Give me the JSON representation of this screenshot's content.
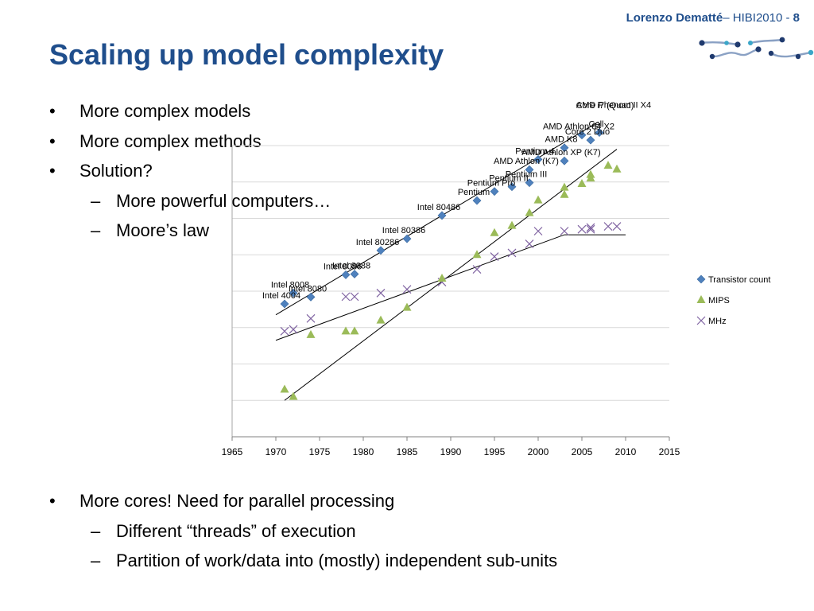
{
  "header": {
    "author": "Lorenzo Dematté",
    "event": "– HIBI2010 - ",
    "page": "8"
  },
  "title": "Scaling up model complexity",
  "bullets_top": [
    {
      "level": 1,
      "text": "More complex models"
    },
    {
      "level": 1,
      "text": "More complex methods"
    },
    {
      "level": 1,
      "text": "Solution?"
    },
    {
      "level": 2,
      "text": "More powerful computers…"
    },
    {
      "level": 2,
      "text": "Moore’s law"
    }
  ],
  "bullets_bottom": [
    {
      "level": 1,
      "text": "More cores! Need for parallel processing"
    },
    {
      "level": 2,
      "text": "Different “threads” of execution"
    },
    {
      "level": 2,
      "text": "Partition of work/data into (mostly) independent sub-units"
    }
  ],
  "chart_data": {
    "type": "scatter",
    "title": "",
    "xlabel": "",
    "ylabel": "",
    "xlim": [
      1965,
      2015
    ],
    "x_ticks": [
      1965,
      1970,
      1975,
      1980,
      1985,
      1990,
      1995,
      2000,
      2005,
      2010,
      2015
    ],
    "y_scale": "log",
    "ylim": [
      0,
      8
    ],
    "grid": true,
    "legend_position": "right",
    "colors": {
      "transistors": "#4f81bd",
      "mips": "#9bbb59",
      "mhz": "#8064a2",
      "trend": "#000000"
    },
    "series": [
      {
        "name": "Transistor count",
        "marker": "diamond",
        "points": [
          {
            "x": 1971,
            "y": 3.65,
            "label": "Intel 4004"
          },
          {
            "x": 1972,
            "y": 3.95,
            "label": "Intel 8008"
          },
          {
            "x": 1974,
            "y": 3.84,
            "label": "Intel 8080"
          },
          {
            "x": 1978,
            "y": 4.45,
            "label": "Intel 8086"
          },
          {
            "x": 1979,
            "y": 4.47,
            "label": "Intel 8088"
          },
          {
            "x": 1982,
            "y": 5.12,
            "label": "Intel 80286"
          },
          {
            "x": 1985,
            "y": 5.44,
            "label": "Intel 80386"
          },
          {
            "x": 1989,
            "y": 6.08,
            "label": "Intel 80486"
          },
          {
            "x": 1993,
            "y": 6.49,
            "label": "Pentium"
          },
          {
            "x": 1995,
            "y": 6.74,
            "label": "Pentium Pro"
          },
          {
            "x": 1997,
            "y": 6.87,
            "label": "Pentium II"
          },
          {
            "x": 1999,
            "y": 6.98,
            "label": "Pentium III"
          },
          {
            "x": 1999,
            "y": 7.34,
            "label": "AMD Athlon (K7)"
          },
          {
            "x": 2000,
            "y": 7.62,
            "label": "Pentium 4"
          },
          {
            "x": 2003,
            "y": 7.58,
            "label": "AMD Athlon XP (K7)"
          },
          {
            "x": 2003,
            "y": 7.94,
            "label": "AMD K8"
          },
          {
            "x": 2005,
            "y": 8.29,
            "label": "AMD Athlon 64 X2"
          },
          {
            "x": 2006,
            "y": 8.15,
            "label": "Core 2 Duo"
          },
          {
            "x": 2007,
            "y": 8.36,
            "label": "Cell"
          },
          {
            "x": 2008,
            "y": 8.87,
            "label": "Core i7 (Quad)"
          },
          {
            "x": 2009,
            "y": 8.88,
            "label": "AMD Phenom II X4"
          }
        ]
      },
      {
        "name": "MIPS",
        "marker": "triangle",
        "points": [
          {
            "x": 1971,
            "y": 1.3
          },
          {
            "x": 1972,
            "y": 1.1
          },
          {
            "x": 1974,
            "y": 2.8
          },
          {
            "x": 1978,
            "y": 2.9
          },
          {
            "x": 1979,
            "y": 2.9
          },
          {
            "x": 1982,
            "y": 3.2
          },
          {
            "x": 1985,
            "y": 3.55
          },
          {
            "x": 1989,
            "y": 4.35
          },
          {
            "x": 1993,
            "y": 5.0
          },
          {
            "x": 1995,
            "y": 5.6
          },
          {
            "x": 1997,
            "y": 5.8
          },
          {
            "x": 1999,
            "y": 6.15
          },
          {
            "x": 2000,
            "y": 6.5
          },
          {
            "x": 2003,
            "y": 6.85
          },
          {
            "x": 2003,
            "y": 6.65
          },
          {
            "x": 2005,
            "y": 6.95
          },
          {
            "x": 2006,
            "y": 7.2
          },
          {
            "x": 2006,
            "y": 7.1
          },
          {
            "x": 2008,
            "y": 7.45
          },
          {
            "x": 2009,
            "y": 7.35
          }
        ]
      },
      {
        "name": "MHz",
        "marker": "x",
        "points": [
          {
            "x": 1971,
            "y": 2.9
          },
          {
            "x": 1972,
            "y": 2.95
          },
          {
            "x": 1974,
            "y": 3.25
          },
          {
            "x": 1978,
            "y": 3.85
          },
          {
            "x": 1979,
            "y": 3.85
          },
          {
            "x": 1982,
            "y": 3.95
          },
          {
            "x": 1985,
            "y": 4.05
          },
          {
            "x": 1989,
            "y": 4.25
          },
          {
            "x": 1993,
            "y": 4.6
          },
          {
            "x": 1995,
            "y": 4.95
          },
          {
            "x": 1997,
            "y": 5.05
          },
          {
            "x": 1999,
            "y": 5.3
          },
          {
            "x": 2000,
            "y": 5.65
          },
          {
            "x": 2003,
            "y": 5.65
          },
          {
            "x": 2005,
            "y": 5.7
          },
          {
            "x": 2006,
            "y": 5.7
          },
          {
            "x": 2006,
            "y": 5.75
          },
          {
            "x": 2008,
            "y": 5.78
          },
          {
            "x": 2009,
            "y": 5.78
          }
        ]
      }
    ],
    "trendlines": [
      {
        "series": "Transistor count",
        "from": {
          "x": 1970,
          "y": 3.35
        },
        "to": {
          "x": 2010,
          "y": 9.1
        }
      },
      {
        "series": "MIPS",
        "from": {
          "x": 1971,
          "y": 1.0
        },
        "to": {
          "x": 2009,
          "y": 7.9
        }
      },
      {
        "series": "MHz",
        "from": {
          "x": 1970,
          "y": 2.65
        },
        "to": {
          "x": 2003,
          "y": 5.55
        }
      },
      {
        "series": "MHz",
        "from": {
          "x": 2003,
          "y": 5.55
        },
        "to": {
          "x": 2010,
          "y": 5.55
        }
      }
    ]
  }
}
